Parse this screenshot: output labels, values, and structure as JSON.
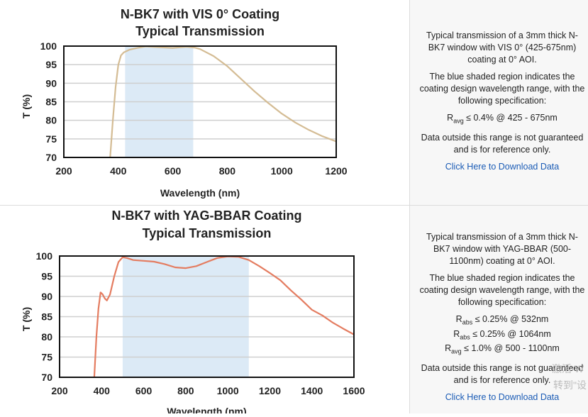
{
  "charts": [
    {
      "title1": "N-BK7 with VIS 0° Coating",
      "title2": "Typical Transmission",
      "xlabel": "Wavelength (nm)",
      "ylabel": "T (%)",
      "description": "Typical transmission of a 3mm thick N-BK7 window with VIS 0° (425-675nm) coating at 0° AOI.",
      "shaded_note": "The blue shaded region indicates the coating design wavelength range, with the following specification:",
      "specs": [
        {
          "sym": "R",
          "sub": "avg",
          "text": " ≤ 0.4% @ 425 - 675nm"
        }
      ],
      "disclaimer": "Data outside this range is not guaranteed and is for reference only.",
      "link_text": "Click Here to Download Data"
    },
    {
      "title1": "N-BK7 with YAG-BBAR Coating",
      "title2": "Typical Transmission",
      "xlabel": "Wavelength (nm)",
      "ylabel": "T (%)",
      "description": "Typical transmission of a 3mm thick N-BK7 window with YAG-BBAR (500-1100nm) coating at 0° AOI.",
      "shaded_note": "The blue shaded region indicates the coating design wavelength range, with the following specification:",
      "specs": [
        {
          "sym": "R",
          "sub": "abs",
          "text": " ≤ 0.25% @ 532nm"
        },
        {
          "sym": "R",
          "sub": "abs",
          "text": " ≤ 0.25% @ 1064nm"
        },
        {
          "sym": "R",
          "sub": "avg",
          "text": " ≤ 1.0% @ 500 - 1100nm"
        }
      ],
      "disclaimer": "Data outside this range is not guaranteed and is for reference only.",
      "link_text": "Click Here to Download Data"
    }
  ],
  "chart_data": [
    {
      "type": "line",
      "title": "N-BK7 with VIS 0° Coating Typical Transmission",
      "xlabel": "Wavelength (nm)",
      "ylabel": "T (%)",
      "xlim": [
        200,
        1200
      ],
      "ylim": [
        70,
        100
      ],
      "xticks": [
        200,
        400,
        600,
        800,
        1000,
        1200
      ],
      "yticks": [
        70,
        75,
        80,
        85,
        90,
        95,
        100
      ],
      "shaded_range": [
        425,
        675
      ],
      "grid": true,
      "color": "#d4bc94",
      "series": [
        {
          "x": [
            370,
            380,
            390,
            400,
            410,
            420,
            440,
            470,
            500,
            550,
            600,
            650,
            680,
            700,
            750,
            800,
            850,
            900,
            950,
            1000,
            1050,
            1100,
            1150,
            1200
          ],
          "y": [
            70,
            80,
            89,
            95,
            97.5,
            98.3,
            99,
            99.5,
            99.9,
            99.7,
            99.5,
            99.8,
            99.6,
            99.2,
            97.3,
            94.6,
            91.2,
            87.8,
            84.7,
            81.8,
            79.4,
            77.4,
            75.7,
            74.3
          ]
        }
      ]
    },
    {
      "type": "line",
      "title": "N-BK7 with YAG-BBAR Coating Typical Transmission",
      "xlabel": "Wavelength (nm)",
      "ylabel": "T (%)",
      "xlim": [
        200,
        1600
      ],
      "ylim": [
        70,
        100
      ],
      "xticks": [
        200,
        400,
        600,
        800,
        1000,
        1200,
        1400,
        1600
      ],
      "yticks": [
        70,
        75,
        80,
        85,
        90,
        95,
        100
      ],
      "shaded_range": [
        500,
        1100
      ],
      "grid": true,
      "color": "#e47c60",
      "series": [
        {
          "x": [
            365,
            375,
            385,
            395,
            405,
            415,
            425,
            440,
            460,
            480,
            500,
            520,
            550,
            600,
            650,
            700,
            750,
            800,
            850,
            900,
            950,
            1000,
            1050,
            1100,
            1150,
            1200,
            1250,
            1300,
            1350,
            1400,
            1450,
            1500,
            1550,
            1600
          ],
          "y": [
            70,
            80,
            87,
            91,
            90.5,
            89.5,
            89,
            90.5,
            95,
            98.5,
            99.7,
            99.5,
            99,
            98.8,
            98.6,
            98,
            97.2,
            97,
            97.5,
            98.5,
            99.5,
            99.9,
            99.8,
            99,
            97.5,
            95.8,
            94,
            91.5,
            89.2,
            86.7,
            85.3,
            83.5,
            82,
            80.6
          ]
        }
      ]
    }
  ],
  "watermark": [
    "激活 W",
    "转到\"设"
  ]
}
